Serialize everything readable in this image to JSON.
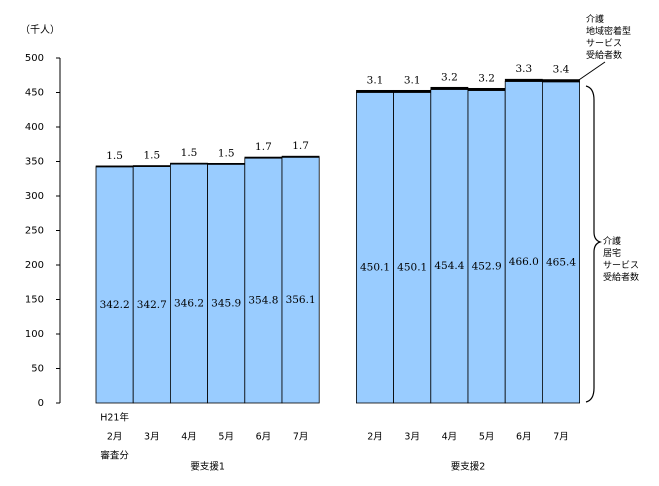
{
  "chart_data": {
    "type": "stacked_bar",
    "y_label": "（千人）",
    "categories": [
      "H21年\n2月\n審査分",
      "3月",
      "4月",
      "5月",
      "6月",
      "7月",
      null,
      "2月",
      "3月",
      "4月",
      "5月",
      "6月",
      "7月"
    ],
    "groups": [
      "要支援1",
      "要支援2"
    ],
    "series": [
      {
        "name": "介護\n居宅\nサービス\n受給者数",
        "color": "#99ccff",
        "values": [
          342.2,
          342.7,
          346.2,
          345.9,
          354.8,
          356.1,
          null,
          450.1,
          450.1,
          454.4,
          452.9,
          466,
          465.4
        ],
        "value_labels": [
          "342.2",
          "342.7",
          "346.2",
          "345.9",
          "354.8",
          "356.1",
          null,
          "450.1",
          "450.1",
          "454.4",
          "452.9",
          "466.0",
          "465.4"
        ]
      },
      {
        "name": "介護\n地域密着型\nサービス\n受給者数",
        "color": "#000000",
        "values": [
          1.5,
          1.5,
          1.5,
          1.5,
          1.7,
          1.7,
          null,
          3.1,
          3.1,
          3.2,
          3.2,
          3.3,
          3.4
        ]
      }
    ],
    "ylim": [
      0,
      500
    ],
    "yticks": [
      0,
      50,
      100,
      150,
      200,
      250,
      300,
      350,
      400,
      450,
      500
    ],
    "grid": false
  }
}
